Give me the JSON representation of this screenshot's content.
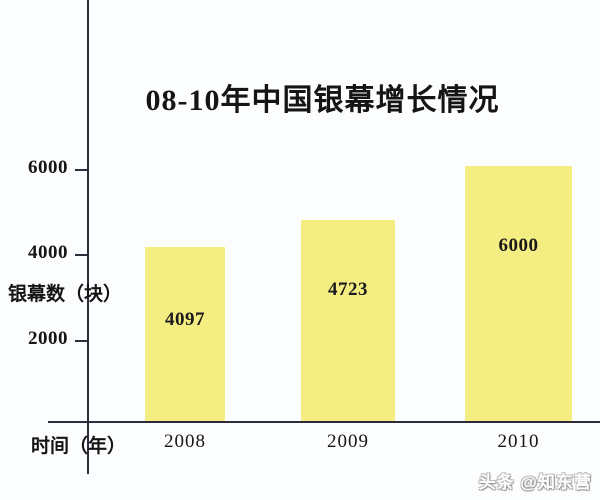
{
  "title": "08-10年中国银幕增长情况",
  "watermark": "头条 @知东营",
  "axes": {
    "ylabel": "银幕数（块）",
    "xlabel": "时间（年）",
    "yticks": [
      "6000",
      "4000",
      "2000"
    ]
  },
  "chart_data": {
    "type": "bar",
    "title": "08-10年中国银幕增长情况",
    "categories": [
      "2008",
      "2009",
      "2010"
    ],
    "values": [
      4097,
      4723,
      6000
    ],
    "data_labels": [
      "4097",
      "4723",
      "6000"
    ],
    "xlabel": "时间（年）",
    "ylabel": "银幕数（块）",
    "yticks": [
      2000,
      4000,
      6000
    ],
    "ylim": [
      0,
      7000
    ],
    "grid": false,
    "legend": "none",
    "bar_color": "#f4ee82",
    "axis_color": "#2c2c3a",
    "background_color": "#fcfdfe",
    "text_color": "#151515"
  }
}
